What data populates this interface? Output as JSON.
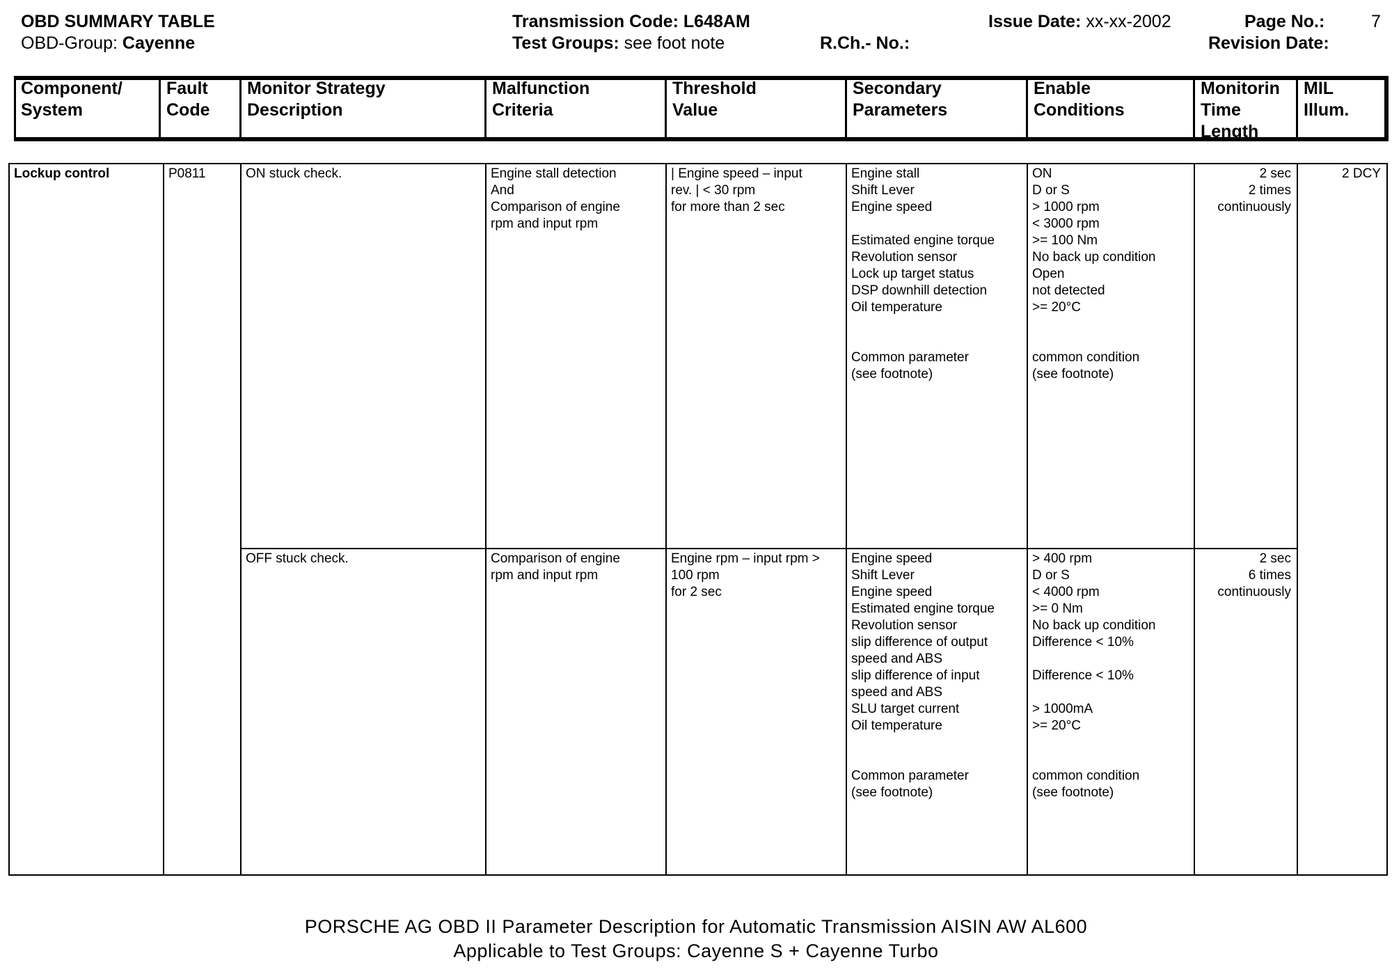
{
  "header": {
    "title": "OBD SUMMARY TABLE",
    "obd_group_label": "OBD-Group:",
    "obd_group_value": "Cayenne",
    "transmission_code_label": "Transmission Code:",
    "transmission_code_value": "L648AM",
    "test_groups_label": "Test Groups:",
    "test_groups_value": "see foot note",
    "rch_no_label": "R.Ch.- No.:",
    "issue_date_label": "Issue Date:",
    "issue_date_value": "xx-xx-2002",
    "page_no_label": "Page No.:",
    "page_no_value": "7",
    "revision_date_label": "Revision Date:"
  },
  "columns": [
    [
      "Component/",
      "System"
    ],
    [
      "Fault",
      "Code"
    ],
    [
      "Monitor Strategy",
      "Description"
    ],
    [
      "Malfunction",
      "Criteria"
    ],
    [
      "Threshold",
      "Value"
    ],
    [
      "Secondary",
      "Parameters"
    ],
    [
      "Enable",
      "Conditions"
    ],
    [
      "Monitorin",
      "Time",
      "Length"
    ],
    [
      "MIL",
      "Illum."
    ]
  ],
  "row": {
    "component": "Lockup control",
    "fault_code": "P0811",
    "mil": "2 DCY",
    "checks": [
      {
        "strategy": [
          "ON stuck check."
        ],
        "malfunction": [
          "Engine stall detection",
          "And",
          "Comparison of engine",
          "rpm and input rpm"
        ],
        "threshold": [
          "| Engine speed – input",
          "rev. | < 30 rpm",
          "for more than 2 sec"
        ],
        "secondary": [
          "Engine stall",
          "Shift Lever",
          "Engine speed",
          "",
          "Estimated engine torque",
          "Revolution sensor",
          "Lock up target status",
          "DSP downhill detection",
          "Oil temperature",
          "",
          "",
          "Common parameter",
          "(see footnote)"
        ],
        "enable": [
          "ON",
          "D or S",
          "> 1000 rpm",
          "< 3000 rpm",
          ">= 100 Nm",
          "No back up condition",
          "Open",
          "not detected",
          ">= 20°C",
          "",
          "",
          "common condition",
          "(see footnote)"
        ],
        "time": [
          "2 sec",
          "2 times",
          "continuously"
        ]
      },
      {
        "strategy": [
          "OFF stuck check."
        ],
        "malfunction": [
          "Comparison of engine",
          "rpm and input rpm"
        ],
        "threshold": [
          "Engine rpm – input rpm >",
          "100 rpm",
          "for 2 sec"
        ],
        "secondary": [
          "Engine speed",
          "Shift Lever",
          "Engine speed",
          "Estimated engine torque",
          "Revolution sensor",
          "slip difference of output",
          "speed and ABS",
          "slip difference of input",
          "speed and ABS",
          "SLU target current",
          "Oil temperature",
          "",
          "",
          "Common parameter",
          "(see footnote)"
        ],
        "enable": [
          "> 400 rpm",
          "D or S",
          "< 4000 rpm",
          ">= 0 Nm",
          "No back up condition",
          "Difference < 10%",
          "",
          "Difference < 10%",
          "",
          "> 1000mA",
          ">= 20°C",
          "",
          "",
          "common condition",
          "(see footnote)"
        ],
        "time": [
          "2 sec",
          "6 times",
          "continuously"
        ]
      }
    ]
  },
  "footer": {
    "line1": "PORSCHE AG OBD II Parameter Description for Automatic Transmission AISIN AW AL600",
    "line2": "Applicable to Test Groups: Cayenne S + Cayenne Turbo"
  }
}
